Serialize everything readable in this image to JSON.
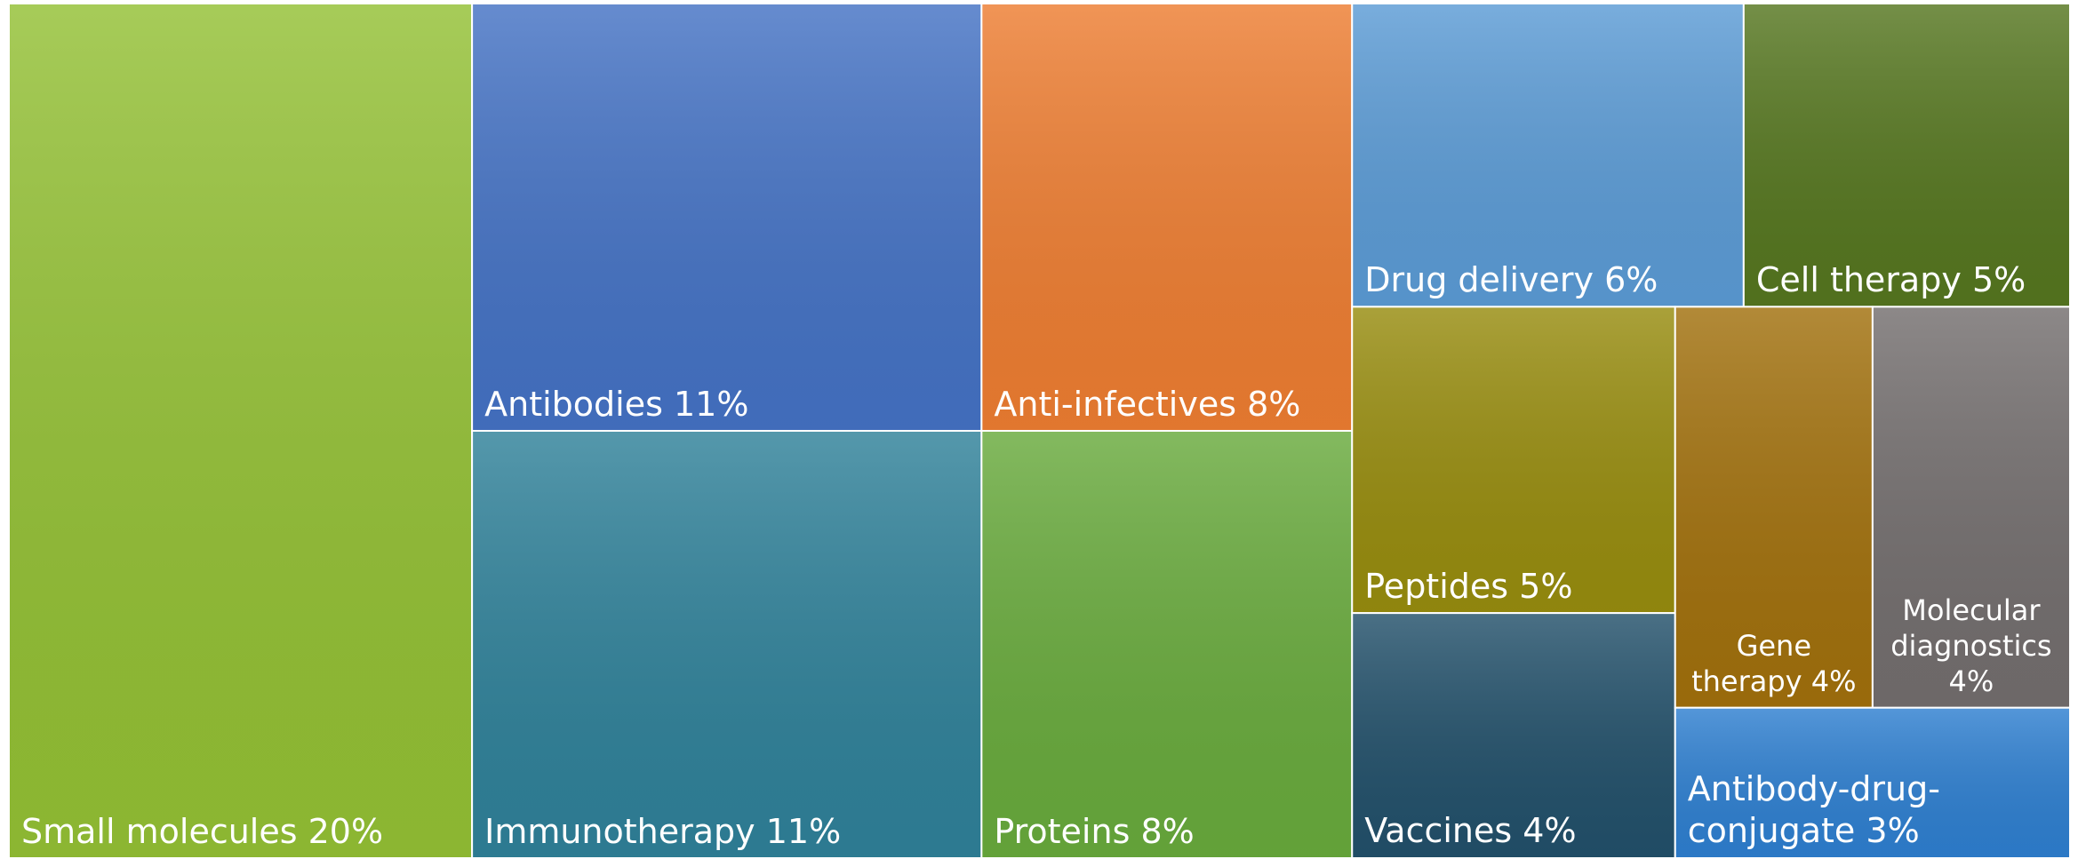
{
  "chart_data": {
    "type": "treemap",
    "categories": [
      "Small molecules",
      "Antibodies",
      "Immunotherapy",
      "Anti-infectives",
      "Proteins",
      "Drug delivery",
      "Cell therapy",
      "Peptides",
      "Vaccines",
      "Gene therapy",
      "Molecular diagnostics",
      "Antibody-drug-conjugate"
    ],
    "values": [
      20,
      11,
      11,
      8,
      8,
      6,
      5,
      5,
      4,
      4,
      4,
      3
    ],
    "value_labels": [
      "20%",
      "11%",
      "11%",
      "8%",
      "8%",
      "6%",
      "5%",
      "5%",
      "4%",
      "4%",
      "4%",
      "3%"
    ],
    "colors": [
      "#93c034",
      "#4472c4",
      "#2f8199",
      "#ed7d31",
      "#68aa3c",
      "#5b9bd5",
      "#55761f",
      "#978c0e",
      "#22506a",
      "#a1700c",
      "#736e6e",
      "#2e7fd0"
    ]
  }
}
